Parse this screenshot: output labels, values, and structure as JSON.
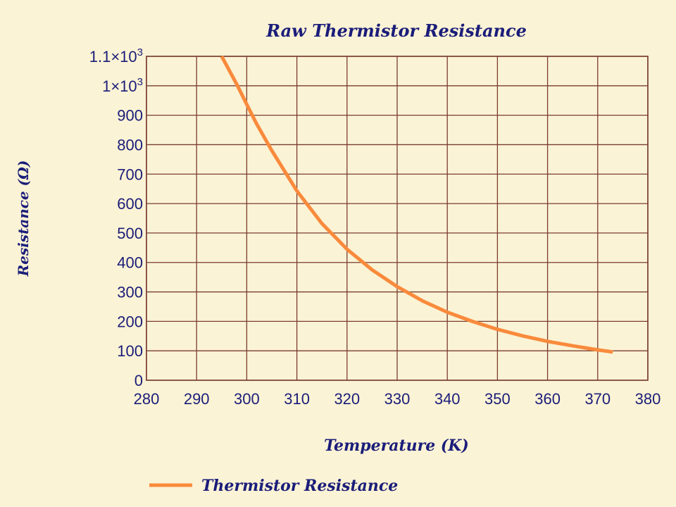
{
  "chart_data": {
    "type": "line",
    "title": "Raw Thermistor Resistance",
    "xlabel": "Temperature (K)",
    "ylabel": "Resistance (Ω)",
    "xlim": [
      280,
      380
    ],
    "ylim": [
      0,
      1100
    ],
    "x_ticks": [
      "280",
      "290",
      "300",
      "310",
      "320",
      "330",
      "340",
      "350",
      "360",
      "370",
      "380"
    ],
    "y_ticks": [
      {
        "value": 0,
        "label": "0"
      },
      {
        "value": 100,
        "label": "100"
      },
      {
        "value": 200,
        "label": "200"
      },
      {
        "value": 300,
        "label": "300"
      },
      {
        "value": 400,
        "label": "400"
      },
      {
        "value": 500,
        "label": "500"
      },
      {
        "value": 600,
        "label": "600"
      },
      {
        "value": 700,
        "label": "700"
      },
      {
        "value": 800,
        "label": "800"
      },
      {
        "value": 900,
        "label": "900"
      },
      {
        "value": 1000,
        "label": "1×10",
        "exp": "3"
      },
      {
        "value": 1100,
        "label": "1.1×10",
        "exp": "3"
      }
    ],
    "grid": true,
    "legend_position": "bottom-left",
    "series": [
      {
        "name": "Thermistor Resistance",
        "color": "#f98a3c",
        "x": [
          295,
          298,
          300,
          302,
          305,
          310,
          315,
          320,
          325,
          330,
          335,
          340,
          345,
          350,
          355,
          360,
          365,
          370,
          373
        ],
        "y": [
          1100,
          1005,
          937,
          870,
          780,
          643,
          532,
          445,
          375,
          318,
          270,
          231,
          200,
          173,
          151,
          132,
          117,
          103,
          96
        ]
      }
    ]
  },
  "colors": {
    "background": "#fbf3d5",
    "grid": "#7a3c2e",
    "text": "#1b1d7a",
    "series": "#f98a3c"
  }
}
